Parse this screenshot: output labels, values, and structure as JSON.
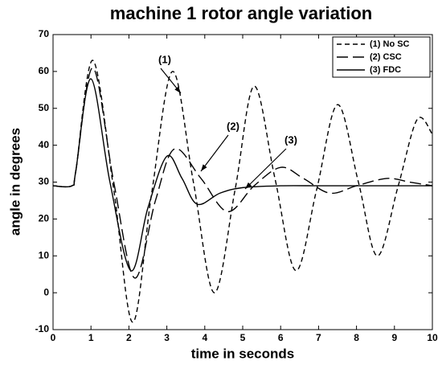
{
  "chart_data": {
    "type": "line",
    "title": "machine 1 rotor angle variation",
    "xlabel": "time in seconds",
    "ylabel": "angle in degrees",
    "xlim": [
      0,
      10
    ],
    "ylim": [
      -10,
      70
    ],
    "xticks": [
      0,
      1,
      2,
      3,
      4,
      5,
      6,
      7,
      8,
      9,
      10
    ],
    "yticks": [
      -10,
      0,
      10,
      20,
      30,
      40,
      50,
      60,
      70
    ],
    "legend": "upper right",
    "series": [
      {
        "name": "(1) No SC",
        "color": "#000000",
        "dash": "dashed",
        "x": [
          0,
          0.5,
          0.6,
          1.05,
          1.6,
          2.1,
          2.6,
          3.15,
          3.7,
          4.25,
          4.8,
          5.3,
          5.85,
          6.4,
          6.95,
          7.5,
          8.05,
          8.55,
          9.1,
          9.6,
          10
        ],
        "values": [
          29,
          29,
          33,
          63,
          28,
          -8,
          27,
          60,
          30,
          0,
          28,
          56,
          31,
          6,
          28,
          51,
          30,
          10,
          29,
          47,
          43
        ]
      },
      {
        "name": "(2) CSC",
        "color": "#000000",
        "dash": "long-dashed",
        "x": [
          0,
          0.5,
          0.6,
          1.05,
          1.6,
          2.15,
          2.7,
          3.2,
          3.9,
          4.6,
          5.3,
          6.0,
          6.6,
          7.3,
          8.0,
          8.8,
          9.4,
          10
        ],
        "values": [
          29,
          29,
          33,
          61,
          30,
          4,
          25,
          39,
          31,
          22,
          29,
          34,
          31,
          27,
          29,
          31,
          30,
          29
        ]
      },
      {
        "name": "(3) FDC",
        "color": "#000000",
        "dash": "solid",
        "x": [
          0,
          0.5,
          0.6,
          1.0,
          1.5,
          2.05,
          2.5,
          3.0,
          3.4,
          3.8,
          4.4,
          5.0,
          6,
          7,
          8,
          9,
          10
        ],
        "values": [
          29,
          29,
          33,
          58,
          30,
          6,
          23,
          37,
          31,
          24,
          27,
          28.5,
          29,
          29,
          29,
          29,
          29
        ]
      }
    ],
    "annotations": [
      "(1)",
      "(2)",
      "(3)"
    ]
  }
}
